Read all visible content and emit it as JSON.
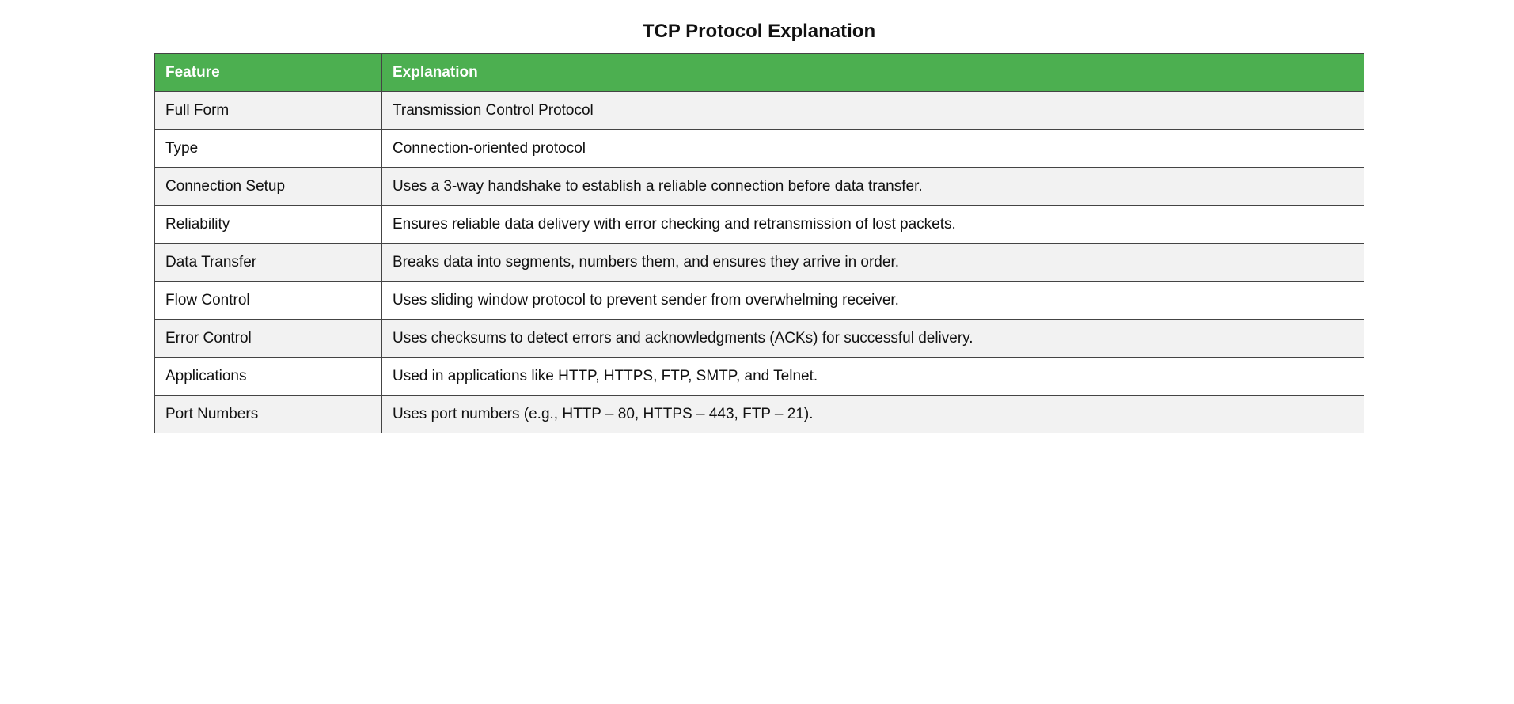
{
  "title": "TCP Protocol Explanation",
  "table": {
    "headers": [
      "Feature",
      "Explanation"
    ],
    "rows": [
      [
        "Full Form",
        "Transmission Control Protocol"
      ],
      [
        "Type",
        "Connection-oriented protocol"
      ],
      [
        "Connection Setup",
        "Uses a 3-way handshake to establish a reliable connection before data transfer."
      ],
      [
        "Reliability",
        "Ensures reliable data delivery with error checking and retransmission of lost packets."
      ],
      [
        "Data Transfer",
        "Breaks data into segments, numbers them, and ensures they arrive in order."
      ],
      [
        "Flow Control",
        "Uses sliding window protocol to prevent sender from overwhelming receiver."
      ],
      [
        "Error Control",
        "Uses checksums to detect errors and acknowledgments (ACKs) for successful delivery."
      ],
      [
        "Applications",
        "Used in applications like HTTP, HTTPS, FTP, SMTP, and Telnet."
      ],
      [
        "Port Numbers",
        "Uses port numbers (e.g., HTTP – 80, HTTPS – 443, FTP – 21)."
      ]
    ]
  },
  "colors": {
    "header_bg": "#4caf50",
    "header_text": "#ffffff",
    "row_alt_bg": "#f2f2f2",
    "border": "#444444"
  }
}
